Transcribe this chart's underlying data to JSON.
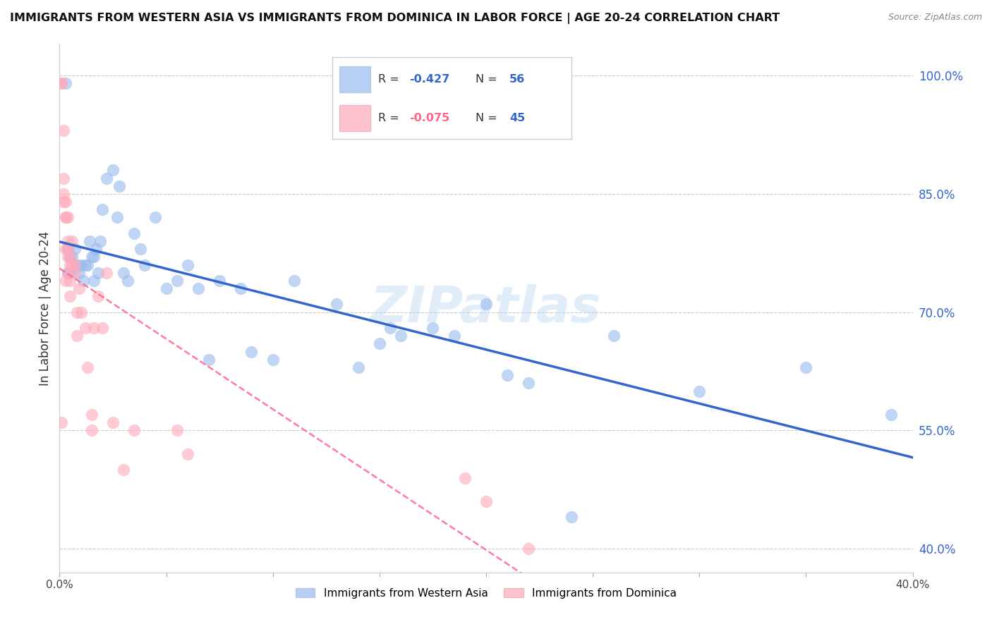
{
  "title": "IMMIGRANTS FROM WESTERN ASIA VS IMMIGRANTS FROM DOMINICA IN LABOR FORCE | AGE 20-24 CORRELATION CHART",
  "source": "Source: ZipAtlas.com",
  "ylabel": "In Labor Force | Age 20-24",
  "legend_label1": "Immigrants from Western Asia",
  "legend_label2": "Immigrants from Dominica",
  "R1": -0.427,
  "N1": 56,
  "R2": -0.075,
  "N2": 45,
  "color_blue": "#99bbee",
  "color_pink": "#ffaabb",
  "color_blue_line": "#3366cc",
  "color_pink_line": "#ff6688",
  "ytick_labels": [
    "40.0%",
    "55.0%",
    "70.0%",
    "85.0%",
    "100.0%"
  ],
  "ytick_values": [
    0.4,
    0.55,
    0.7,
    0.85,
    1.0
  ],
  "xlim": [
    0.0,
    0.4
  ],
  "ylim": [
    0.37,
    1.04
  ],
  "blue_x": [
    0.003,
    0.004,
    0.004,
    0.005,
    0.005,
    0.006,
    0.007,
    0.008,
    0.009,
    0.01,
    0.011,
    0.012,
    0.013,
    0.014,
    0.015,
    0.016,
    0.016,
    0.017,
    0.018,
    0.019,
    0.02,
    0.022,
    0.025,
    0.027,
    0.028,
    0.03,
    0.032,
    0.035,
    0.038,
    0.04,
    0.045,
    0.05,
    0.055,
    0.06,
    0.065,
    0.07,
    0.075,
    0.085,
    0.09,
    0.1,
    0.11,
    0.13,
    0.14,
    0.15,
    0.155,
    0.16,
    0.175,
    0.185,
    0.2,
    0.21,
    0.22,
    0.24,
    0.26,
    0.3,
    0.35,
    0.39
  ],
  "blue_y": [
    0.99,
    0.78,
    0.75,
    0.75,
    0.77,
    0.77,
    0.78,
    0.76,
    0.75,
    0.76,
    0.74,
    0.76,
    0.76,
    0.79,
    0.77,
    0.74,
    0.77,
    0.78,
    0.75,
    0.79,
    0.83,
    0.87,
    0.88,
    0.82,
    0.86,
    0.75,
    0.74,
    0.8,
    0.78,
    0.76,
    0.82,
    0.73,
    0.74,
    0.76,
    0.73,
    0.64,
    0.74,
    0.73,
    0.65,
    0.64,
    0.74,
    0.71,
    0.63,
    0.66,
    0.68,
    0.67,
    0.68,
    0.67,
    0.71,
    0.62,
    0.61,
    0.44,
    0.67,
    0.6,
    0.63,
    0.57
  ],
  "pink_x": [
    0.001,
    0.001,
    0.001,
    0.002,
    0.002,
    0.002,
    0.002,
    0.003,
    0.003,
    0.003,
    0.003,
    0.003,
    0.004,
    0.004,
    0.004,
    0.004,
    0.004,
    0.005,
    0.005,
    0.005,
    0.005,
    0.006,
    0.006,
    0.007,
    0.007,
    0.008,
    0.008,
    0.009,
    0.01,
    0.012,
    0.013,
    0.015,
    0.015,
    0.016,
    0.018,
    0.02,
    0.022,
    0.025,
    0.03,
    0.035,
    0.055,
    0.06,
    0.19,
    0.2,
    0.22
  ],
  "pink_y": [
    0.99,
    0.99,
    0.56,
    0.93,
    0.87,
    0.85,
    0.84,
    0.84,
    0.82,
    0.78,
    0.74,
    0.82,
    0.82,
    0.79,
    0.78,
    0.75,
    0.77,
    0.77,
    0.76,
    0.74,
    0.72,
    0.79,
    0.76,
    0.76,
    0.75,
    0.7,
    0.67,
    0.73,
    0.7,
    0.68,
    0.63,
    0.57,
    0.55,
    0.68,
    0.72,
    0.68,
    0.75,
    0.56,
    0.5,
    0.55,
    0.55,
    0.52,
    0.49,
    0.46,
    0.4
  ],
  "watermark": "ZIPatlas",
  "bg_color": "#ffffff",
  "grid_color": "#cccccc"
}
